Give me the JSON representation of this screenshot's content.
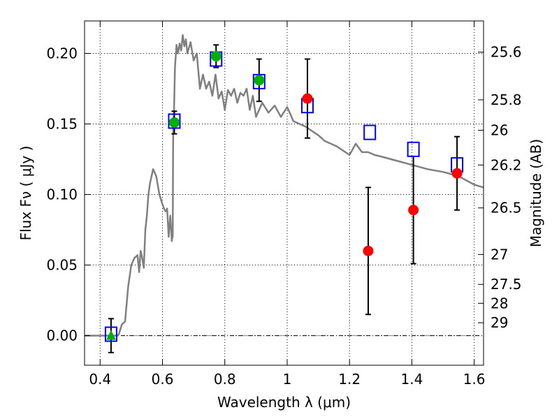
{
  "chart_data": {
    "type": "scatter",
    "title": "",
    "xlabel": "Wavelength  λ (μm)",
    "ylabel": "Flux  Fν  ( μJy )",
    "y2label": "Magnitude (AB)",
    "xlim": [
      0.35,
      1.63
    ],
    "ylim": [
      -0.021,
      0.223
    ],
    "grid": true,
    "x_ticks": [
      {
        "value": 0.4,
        "label": "0.4"
      },
      {
        "value": 0.6,
        "label": "0.6"
      },
      {
        "value": 0.8,
        "label": "0.8"
      },
      {
        "value": 1.0,
        "label": "1"
      },
      {
        "value": 1.2,
        "label": "1.2"
      },
      {
        "value": 1.4,
        "label": "1.4"
      },
      {
        "value": 1.6,
        "label": "1.6"
      }
    ],
    "y_ticks": [
      {
        "value": 0.0,
        "label": "0.00"
      },
      {
        "value": 0.05,
        "label": "0.05"
      },
      {
        "value": 0.1,
        "label": "0.10"
      },
      {
        "value": 0.15,
        "label": "0.15"
      },
      {
        "value": 0.2,
        "label": "0.20"
      }
    ],
    "y2_ticks": [
      {
        "flux": 0.2009,
        "label": "25.6"
      },
      {
        "flux": 0.1671,
        "label": "25.8"
      },
      {
        "flux": 0.1455,
        "label": "26"
      },
      {
        "flux": 0.1209,
        "label": "26.2"
      },
      {
        "flux": 0.0905,
        "label": "26.5"
      },
      {
        "flux": 0.0575,
        "label": "27"
      },
      {
        "flux": 0.0363,
        "label": "27.5"
      },
      {
        "flux": 0.0229,
        "label": "28"
      },
      {
        "flux": 0.0091,
        "label": "29"
      }
    ],
    "model_spectrum": {
      "color": "#808080",
      "x": [
        0.35,
        0.43,
        0.455,
        0.46,
        0.47,
        0.48,
        0.49,
        0.5,
        0.51,
        0.52,
        0.525,
        0.53,
        0.535,
        0.54,
        0.545,
        0.55,
        0.555,
        0.56,
        0.57,
        0.58,
        0.59,
        0.6,
        0.605,
        0.61,
        0.615,
        0.62,
        0.625,
        0.63,
        0.632,
        0.633,
        0.634,
        0.635,
        0.636,
        0.64,
        0.645,
        0.65,
        0.655,
        0.66,
        0.665,
        0.67,
        0.675,
        0.68,
        0.69,
        0.7,
        0.71,
        0.72,
        0.73,
        0.74,
        0.75,
        0.76,
        0.77,
        0.78,
        0.79,
        0.8,
        0.81,
        0.82,
        0.83,
        0.84,
        0.85,
        0.86,
        0.87,
        0.88,
        0.89,
        0.9,
        0.92,
        0.94,
        0.96,
        0.98,
        1.0,
        1.02,
        1.04,
        1.06,
        1.08,
        1.1,
        1.12,
        1.14,
        1.16,
        1.18,
        1.2,
        1.22,
        1.24,
        1.26,
        1.28,
        1.3,
        1.35,
        1.4,
        1.45,
        1.5,
        1.55,
        1.6,
        1.63
      ],
      "y": [
        0.0,
        0.0,
        0.0,
        0.001,
        0.008,
        0.01,
        0.035,
        0.05,
        0.055,
        0.057,
        0.045,
        0.06,
        0.055,
        0.048,
        0.075,
        0.085,
        0.1,
        0.108,
        0.118,
        0.113,
        0.1,
        0.093,
        0.09,
        0.088,
        0.09,
        0.07,
        0.085,
        0.067,
        0.07,
        0.07,
        0.13,
        0.155,
        0.15,
        0.19,
        0.206,
        0.2,
        0.207,
        0.202,
        0.213,
        0.205,
        0.21,
        0.2,
        0.208,
        0.195,
        0.2,
        0.175,
        0.185,
        0.175,
        0.18,
        0.17,
        0.185,
        0.168,
        0.173,
        0.16,
        0.174,
        0.17,
        0.175,
        0.165,
        0.172,
        0.17,
        0.175,
        0.16,
        0.17,
        0.155,
        0.165,
        0.158,
        0.163,
        0.155,
        0.162,
        0.152,
        0.15,
        0.148,
        0.145,
        0.142,
        0.138,
        0.136,
        0.134,
        0.131,
        0.128,
        0.136,
        0.13,
        0.13,
        0.128,
        0.127,
        0.124,
        0.121,
        0.118,
        0.116,
        0.113,
        0.107,
        0.105
      ]
    },
    "series": [
      {
        "marker": "square",
        "color": "#0000ff",
        "points": [
          {
            "x": 0.435,
            "y": 0.001
          },
          {
            "x": 0.638,
            "y": 0.152
          },
          {
            "x": 0.772,
            "y": 0.196
          },
          {
            "x": 0.91,
            "y": 0.18
          },
          {
            "x": 1.065,
            "y": 0.163
          },
          {
            "x": 1.265,
            "y": 0.144
          },
          {
            "x": 1.405,
            "y": 0.132
          },
          {
            "x": 1.545,
            "y": 0.121
          }
        ]
      },
      {
        "marker": "circle",
        "color": "#00b000",
        "points": [
          {
            "x": 0.638,
            "y": 0.151,
            "yerr": 0.008
          },
          {
            "x": 0.772,
            "y": 0.198,
            "yerr": 0.008
          },
          {
            "x": 0.91,
            "y": 0.181,
            "yerr": 0.015
          }
        ]
      },
      {
        "marker": "triangle",
        "color": "#00b000",
        "points": [
          {
            "x": 0.435,
            "y": 0.0,
            "yerr": 0.012
          }
        ]
      },
      {
        "marker": "circle",
        "color": "#ff0000",
        "points": [
          {
            "x": 1.065,
            "y": 0.168,
            "yerr": 0.028
          },
          {
            "x": 1.26,
            "y": 0.06,
            "yerr": 0.045
          },
          {
            "x": 1.405,
            "y": 0.089,
            "yerr": 0.038
          },
          {
            "x": 1.545,
            "y": 0.115,
            "yerr": 0.026
          }
        ]
      }
    ]
  }
}
